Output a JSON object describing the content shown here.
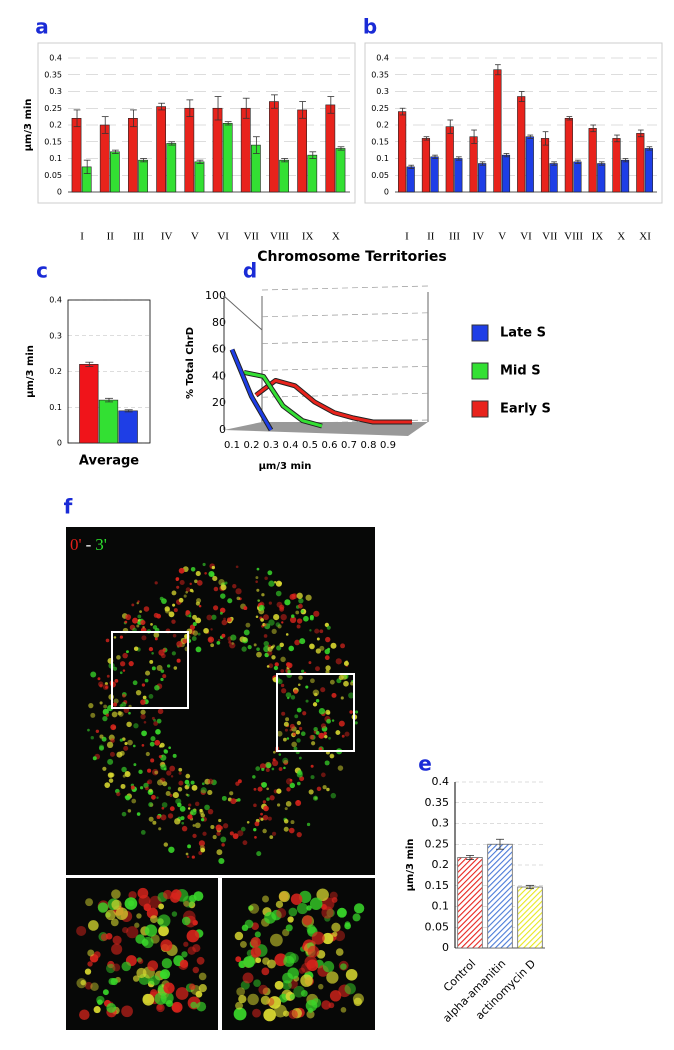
{
  "shared_xlabel": "Chromosome Territories",
  "image": {
    "panel": "f",
    "start_label": "0'",
    "separator": "-",
    "end_label": "3'"
  },
  "chart_data": [
    {
      "type": "bar",
      "panel": "a",
      "ylabel": "μm/3 min",
      "categories": [
        "I",
        "II",
        "III",
        "IV",
        "V",
        "VI",
        "VII",
        "VIII",
        "IX",
        "X"
      ],
      "series": [
        {
          "color": "#e8231c",
          "values": [
            0.22,
            0.2,
            0.22,
            0.255,
            0.25,
            0.25,
            0.25,
            0.27,
            0.245,
            0.26
          ],
          "errors": [
            0.025,
            0.025,
            0.025,
            0.01,
            0.025,
            0.035,
            0.03,
            0.02,
            0.025,
            0.025
          ]
        },
        {
          "color": "#33e033",
          "values": [
            0.075,
            0.12,
            0.095,
            0.145,
            0.09,
            0.205,
            0.14,
            0.095,
            0.11,
            0.13
          ],
          "errors": [
            0.02,
            0.005,
            0.005,
            0.005,
            0.005,
            0.005,
            0.025,
            0.005,
            0.01,
            0.005
          ]
        }
      ],
      "ylim": [
        0,
        0.4
      ],
      "yticks": [
        0,
        0.05,
        0.1,
        0.15,
        0.2,
        0.25,
        0.3,
        0.35,
        0.4
      ],
      "grid": true
    },
    {
      "type": "bar",
      "panel": "b",
      "categories": [
        "I",
        "II",
        "III",
        "IV",
        "V",
        "VI",
        "VII",
        "VIII",
        "IX",
        "X",
        "XI"
      ],
      "series": [
        {
          "color": "#e8231c",
          "values": [
            0.24,
            0.16,
            0.195,
            0.165,
            0.365,
            0.285,
            0.16,
            0.22,
            0.19,
            0.16,
            0.175
          ],
          "errors": [
            0.01,
            0.005,
            0.02,
            0.02,
            0.015,
            0.015,
            0.02,
            0.005,
            0.01,
            0.01,
            0.01
          ]
        },
        {
          "color": "#1e3ee6",
          "values": [
            0.075,
            0.105,
            0.1,
            0.085,
            0.11,
            0.165,
            0.085,
            0.09,
            0.085,
            0.095,
            0.13
          ],
          "errors": [
            0.005,
            0.005,
            0.005,
            0.005,
            0.005,
            0.005,
            0.005,
            0.005,
            0.005,
            0.005,
            0.005
          ]
        }
      ],
      "ylim": [
        0,
        0.4
      ],
      "yticks": [
        0,
        0.05,
        0.1,
        0.15,
        0.2,
        0.25,
        0.3,
        0.35,
        0.4
      ],
      "grid": true
    },
    {
      "type": "bar",
      "panel": "c",
      "ylabel": "μm/3 min",
      "xlabel": "Average",
      "categories": [
        null
      ],
      "series": [
        {
          "color": "#f0141a",
          "values": [
            0.22
          ],
          "errors": [
            0.006
          ]
        },
        {
          "color": "#33e033",
          "values": [
            0.12
          ],
          "errors": [
            0.005
          ]
        },
        {
          "color": "#1e3ee6",
          "values": [
            0.09
          ],
          "errors": [
            0.003
          ]
        }
      ],
      "ylim": [
        0,
        0.4
      ],
      "yticks": [
        0,
        0.1,
        0.2,
        0.3,
        0.4
      ],
      "grid": true
    },
    {
      "type": "line",
      "panel": "d",
      "ylabel": "% Total ChrD",
      "xlabel": "μm/3 min",
      "x": [
        0.1,
        0.2,
        0.3,
        0.4,
        0.5,
        0.6,
        0.7,
        0.8,
        0.9
      ],
      "series": [
        {
          "name": "Early S",
          "color": "#e8231c",
          "values": [
            20,
            31,
            27,
            15,
            7,
            3,
            0,
            0,
            0
          ]
        },
        {
          "name": "Mid S",
          "color": "#33e033",
          "values": [
            40,
            37,
            15,
            4,
            0,
            null,
            null,
            null,
            null
          ]
        },
        {
          "name": "Late S",
          "color": "#1e3ee6",
          "values": [
            60,
            25,
            0,
            null,
            null,
            null,
            null,
            null,
            null
          ]
        }
      ],
      "xlim": [
        0.1,
        0.9
      ],
      "xticks": [
        0.1,
        0.2,
        0.3,
        0.4,
        0.5,
        0.6,
        0.7,
        0.8,
        0.9
      ],
      "ylim": [
        0,
        100
      ],
      "yticks": [
        0,
        20,
        40,
        60,
        80,
        100
      ],
      "grid": true
    },
    {
      "type": "bar",
      "panel": "e",
      "ylabel": "μm/3 min",
      "categories": [
        "Control",
        "alpha-amanitin",
        "actinomycin D"
      ],
      "colors": [
        "#e8231c",
        "#4a7ad8",
        "#e8e820"
      ],
      "hatched": true,
      "values": [
        0.218,
        0.25,
        0.147
      ],
      "errors": [
        0.005,
        0.012,
        0.004
      ],
      "ylim": [
        0,
        0.4
      ],
      "yticks": [
        0,
        0.05,
        0.1,
        0.15,
        0.2,
        0.25,
        0.3,
        0.35,
        0.4
      ],
      "grid": true
    }
  ]
}
